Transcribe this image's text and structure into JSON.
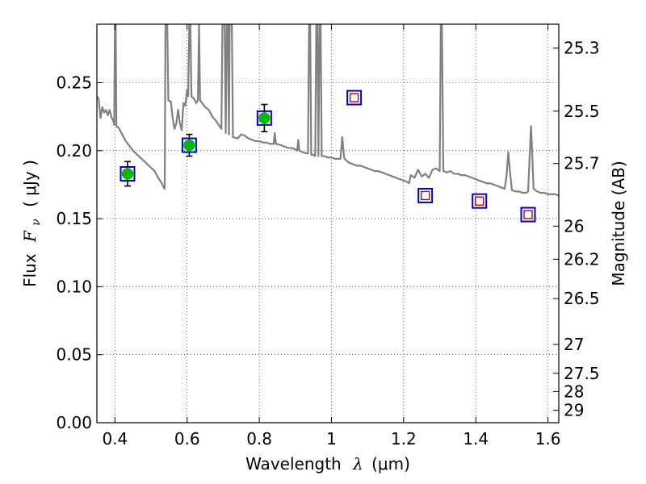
{
  "chart_data": {
    "type": "scatter",
    "xlabel": {
      "prefix": "Wavelength",
      "symbol": "λ",
      "unit": "(μm)"
    },
    "ylabel": {
      "prefix": "Flux",
      "symbol": "F",
      "subscript": "ν",
      "unit": "( μJy )"
    },
    "y2label": "Magnitude (AB)",
    "xlim": [
      0.35,
      1.63
    ],
    "ylim": [
      0.0,
      0.293
    ],
    "grid": true,
    "x_ticks": [
      {
        "value": 0.4,
        "label": "0.4"
      },
      {
        "value": 0.6,
        "label": "0.6"
      },
      {
        "value": 0.8,
        "label": "0.8"
      },
      {
        "value": 1.0,
        "label": "1"
      },
      {
        "value": 1.2,
        "label": "1.2"
      },
      {
        "value": 1.4,
        "label": "1.4"
      },
      {
        "value": 1.6,
        "label": "1.6"
      }
    ],
    "y_ticks": [
      {
        "value": 0.0,
        "label": "0.00"
      },
      {
        "value": 0.05,
        "label": "0.05"
      },
      {
        "value": 0.1,
        "label": "0.10"
      },
      {
        "value": 0.15,
        "label": "0.15"
      },
      {
        "value": 0.2,
        "label": "0.20"
      },
      {
        "value": 0.25,
        "label": "0.25"
      }
    ],
    "y2_ticks": [
      {
        "value": 25.3,
        "label": "25.3"
      },
      {
        "value": 25.5,
        "label": "25.5"
      },
      {
        "value": 25.7,
        "label": "25.7"
      },
      {
        "value": 26.0,
        "label": "26"
      },
      {
        "value": 26.2,
        "label": "26.2"
      },
      {
        "value": 26.5,
        "label": "26.5"
      },
      {
        "value": 27.0,
        "label": "27"
      },
      {
        "value": 27.5,
        "label": "27.5"
      },
      {
        "value": 28.0,
        "label": "28"
      },
      {
        "value": 29.0,
        "label": "29"
      }
    ],
    "series": [
      {
        "kind": "line",
        "color": "#808080",
        "points": [
          [
            0.35,
            0.24
          ],
          [
            0.355,
            0.238
          ],
          [
            0.36,
            0.224
          ],
          [
            0.365,
            0.232
          ],
          [
            0.37,
            0.228
          ],
          [
            0.375,
            0.23
          ],
          [
            0.38,
            0.226
          ],
          [
            0.385,
            0.23
          ],
          [
            0.39,
            0.225
          ],
          [
            0.395,
            0.222
          ],
          [
            0.398,
            0.219
          ],
          [
            0.4,
            0.293
          ],
          [
            0.402,
            0.293
          ],
          [
            0.404,
            0.218
          ],
          [
            0.41,
            0.217
          ],
          [
            0.42,
            0.212
          ],
          [
            0.43,
            0.207
          ],
          [
            0.45,
            0.2
          ],
          [
            0.47,
            0.195
          ],
          [
            0.49,
            0.19
          ],
          [
            0.51,
            0.185
          ],
          [
            0.52,
            0.18
          ],
          [
            0.53,
            0.176
          ],
          [
            0.535,
            0.173
          ],
          [
            0.538,
            0.172
          ],
          [
            0.54,
            0.293
          ],
          [
            0.545,
            0.293
          ],
          [
            0.548,
            0.237
          ],
          [
            0.555,
            0.236
          ],
          [
            0.56,
            0.224
          ],
          [
            0.565,
            0.216
          ],
          [
            0.57,
            0.22
          ],
          [
            0.575,
            0.23
          ],
          [
            0.58,
            0.22
          ],
          [
            0.585,
            0.215
          ],
          [
            0.59,
            0.235
          ],
          [
            0.595,
            0.233
          ],
          [
            0.6,
            0.245
          ],
          [
            0.603,
            0.24
          ],
          [
            0.606,
            0.293
          ],
          [
            0.609,
            0.293
          ],
          [
            0.612,
            0.24
          ],
          [
            0.62,
            0.238
          ],
          [
            0.625,
            0.235
          ],
          [
            0.63,
            0.237
          ],
          [
            0.633,
            0.293
          ],
          [
            0.636,
            0.237
          ],
          [
            0.65,
            0.232
          ],
          [
            0.66,
            0.23
          ],
          [
            0.67,
            0.225
          ],
          [
            0.68,
            0.222
          ],
          [
            0.69,
            0.218
          ],
          [
            0.695,
            0.216
          ],
          [
            0.698,
            0.293
          ],
          [
            0.701,
            0.293
          ],
          [
            0.704,
            0.293
          ],
          [
            0.707,
            0.213
          ],
          [
            0.71,
            0.293
          ],
          [
            0.713,
            0.293
          ],
          [
            0.716,
            0.212
          ],
          [
            0.718,
            0.293
          ],
          [
            0.721,
            0.293
          ],
          [
            0.724,
            0.293
          ],
          [
            0.727,
            0.21
          ],
          [
            0.74,
            0.209
          ],
          [
            0.75,
            0.212
          ],
          [
            0.76,
            0.211
          ],
          [
            0.77,
            0.209
          ],
          [
            0.78,
            0.208
          ],
          [
            0.79,
            0.207
          ],
          [
            0.8,
            0.207
          ],
          [
            0.81,
            0.206
          ],
          [
            0.82,
            0.206
          ],
          [
            0.83,
            0.205
          ],
          [
            0.84,
            0.205
          ],
          [
            0.843,
            0.213
          ],
          [
            0.846,
            0.205
          ],
          [
            0.86,
            0.204
          ],
          [
            0.87,
            0.203
          ],
          [
            0.88,
            0.202
          ],
          [
            0.89,
            0.202
          ],
          [
            0.9,
            0.201
          ],
          [
            0.905,
            0.2
          ],
          [
            0.908,
            0.208
          ],
          [
            0.911,
            0.2
          ],
          [
            0.92,
            0.199
          ],
          [
            0.93,
            0.198
          ],
          [
            0.935,
            0.198
          ],
          [
            0.938,
            0.293
          ],
          [
            0.941,
            0.293
          ],
          [
            0.944,
            0.197
          ],
          [
            0.95,
            0.197
          ],
          [
            0.955,
            0.196
          ],
          [
            0.958,
            0.293
          ],
          [
            0.961,
            0.293
          ],
          [
            0.964,
            0.196
          ],
          [
            0.967,
            0.293
          ],
          [
            0.97,
            0.293
          ],
          [
            0.973,
            0.196
          ],
          [
            0.98,
            0.196
          ],
          [
            0.99,
            0.195
          ],
          [
            1.0,
            0.195
          ],
          [
            1.01,
            0.194
          ],
          [
            1.02,
            0.194
          ],
          [
            1.025,
            0.194
          ],
          [
            1.03,
            0.21
          ],
          [
            1.035,
            0.195
          ],
          [
            1.04,
            0.193
          ],
          [
            1.05,
            0.191
          ],
          [
            1.06,
            0.19
          ],
          [
            1.07,
            0.189
          ],
          [
            1.08,
            0.189
          ],
          [
            1.09,
            0.188
          ],
          [
            1.1,
            0.187
          ],
          [
            1.11,
            0.186
          ],
          [
            1.12,
            0.185
          ],
          [
            1.13,
            0.185
          ],
          [
            1.14,
            0.184
          ],
          [
            1.15,
            0.183
          ],
          [
            1.16,
            0.182
          ],
          [
            1.17,
            0.181
          ],
          [
            1.18,
            0.18
          ],
          [
            1.19,
            0.179
          ],
          [
            1.2,
            0.178
          ],
          [
            1.21,
            0.177
          ],
          [
            1.215,
            0.176
          ],
          [
            1.22,
            0.182
          ],
          [
            1.23,
            0.18
          ],
          [
            1.24,
            0.186
          ],
          [
            1.25,
            0.181
          ],
          [
            1.26,
            0.183
          ],
          [
            1.27,
            0.18
          ],
          [
            1.28,
            0.186
          ],
          [
            1.29,
            0.187
          ],
          [
            1.3,
            0.185
          ],
          [
            1.303,
            0.293
          ],
          [
            1.306,
            0.293
          ],
          [
            1.31,
            0.185
          ],
          [
            1.32,
            0.184
          ],
          [
            1.33,
            0.185
          ],
          [
            1.34,
            0.183
          ],
          [
            1.35,
            0.183
          ],
          [
            1.36,
            0.182
          ],
          [
            1.37,
            0.182
          ],
          [
            1.38,
            0.181
          ],
          [
            1.39,
            0.18
          ],
          [
            1.4,
            0.179
          ],
          [
            1.41,
            0.178
          ],
          [
            1.42,
            0.177
          ],
          [
            1.43,
            0.176
          ],
          [
            1.44,
            0.176
          ],
          [
            1.45,
            0.175
          ],
          [
            1.46,
            0.174
          ],
          [
            1.47,
            0.173
          ],
          [
            1.48,
            0.172
          ],
          [
            1.485,
            0.181
          ],
          [
            1.49,
            0.199
          ],
          [
            1.495,
            0.184
          ],
          [
            1.5,
            0.171
          ],
          [
            1.51,
            0.17
          ],
          [
            1.52,
            0.17
          ],
          [
            1.53,
            0.169
          ],
          [
            1.54,
            0.169
          ],
          [
            1.545,
            0.17
          ],
          [
            1.55,
            0.2
          ],
          [
            1.553,
            0.218
          ],
          [
            1.556,
            0.2
          ],
          [
            1.56,
            0.172
          ],
          [
            1.57,
            0.17
          ],
          [
            1.58,
            0.169
          ],
          [
            1.59,
            0.169
          ],
          [
            1.6,
            0.168
          ],
          [
            1.61,
            0.168
          ],
          [
            1.62,
            0.168
          ],
          [
            1.63,
            0.167
          ]
        ]
      },
      {
        "kind": "observed",
        "marker": "circle",
        "color": "#00bb00",
        "box_color": "#0000cc",
        "points": [
          {
            "x": 0.435,
            "y": 0.183,
            "err": 0.009
          },
          {
            "x": 0.606,
            "y": 0.204,
            "err": 0.008
          },
          {
            "x": 0.814,
            "y": 0.224,
            "err": 0.01
          }
        ]
      },
      {
        "kind": "model",
        "marker": "square",
        "color": "#cc0000",
        "box_color": "#0000cc",
        "points": [
          {
            "x": 1.063,
            "y": 0.239
          },
          {
            "x": 1.26,
            "y": 0.167
          },
          {
            "x": 1.41,
            "y": 0.163
          },
          {
            "x": 1.545,
            "y": 0.153
          }
        ]
      }
    ]
  }
}
